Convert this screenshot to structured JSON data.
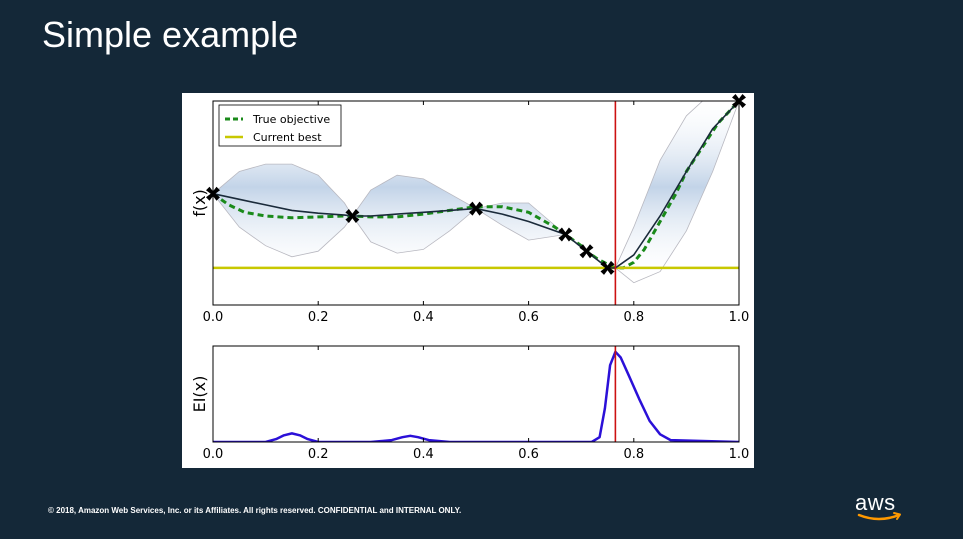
{
  "slide": {
    "title": "Simple example",
    "footer": "© 2018, Amazon Web Services, Inc. or its Affiliates. All rights reserved. CONFIDENTIAL and INTERNAL ONLY.",
    "logo_text": "aws"
  },
  "colors": {
    "background": "#142838",
    "true_objective": "#1a8a1a",
    "current_best": "#c8c800",
    "posterior_mean": "#1a2a3a",
    "uncertainty_band": "#b8cce4",
    "ei_curve": "#2b10d8",
    "next_sample_line": "#cc1111",
    "aws_smile": "#ff9900"
  },
  "chart_data": [
    {
      "type": "line",
      "ylabel": "f(x)",
      "xlim": [
        0.0,
        1.0
      ],
      "ylim": [
        -0.1,
        1.0
      ],
      "x_ticks": [
        "0.0",
        "0.2",
        "0.4",
        "0.6",
        "0.8",
        "1.0"
      ],
      "legend": {
        "placement": "top-left",
        "entries": [
          "True objective",
          "Current best"
        ]
      },
      "series": [
        {
          "name": "True objective",
          "style": "dashed",
          "x": [
            0.0,
            0.03,
            0.06,
            0.1,
            0.15,
            0.2,
            0.25,
            0.265,
            0.3,
            0.35,
            0.4,
            0.45,
            0.5,
            0.55,
            0.6,
            0.65,
            0.67,
            0.7,
            0.71,
            0.73,
            0.75,
            0.765,
            0.78,
            0.8,
            0.82,
            0.85,
            0.88,
            0.9,
            0.93,
            0.96,
            1.0
          ],
          "y": [
            0.5,
            0.44,
            0.4,
            0.38,
            0.37,
            0.375,
            0.38,
            0.38,
            0.375,
            0.375,
            0.39,
            0.41,
            0.43,
            0.43,
            0.4,
            0.32,
            0.28,
            0.22,
            0.19,
            0.15,
            0.12,
            0.1,
            0.1,
            0.13,
            0.2,
            0.35,
            0.5,
            0.62,
            0.75,
            0.88,
            1.0
          ]
        },
        {
          "name": "Current best",
          "style": "solid",
          "x": [
            0.0,
            1.0
          ],
          "y": [
            0.1,
            0.1
          ]
        }
      ],
      "posterior": {
        "x": [
          0.0,
          0.05,
          0.1,
          0.15,
          0.2,
          0.25,
          0.265,
          0.3,
          0.35,
          0.4,
          0.45,
          0.5,
          0.55,
          0.6,
          0.67,
          0.71,
          0.75,
          0.765,
          0.8,
          0.85,
          0.9,
          0.95,
          1.0
        ],
        "mean": [
          0.5,
          0.47,
          0.44,
          0.41,
          0.395,
          0.385,
          0.38,
          0.38,
          0.39,
          0.4,
          0.41,
          0.42,
          0.39,
          0.35,
          0.28,
          0.19,
          0.1,
          0.1,
          0.17,
          0.38,
          0.62,
          0.85,
          1.0
        ],
        "upper": [
          0.5,
          0.62,
          0.66,
          0.66,
          0.6,
          0.45,
          0.38,
          0.52,
          0.6,
          0.58,
          0.5,
          0.42,
          0.45,
          0.45,
          0.28,
          0.19,
          0.1,
          0.1,
          0.32,
          0.68,
          0.92,
          1.05,
          1.0
        ],
        "lower": [
          0.5,
          0.32,
          0.22,
          0.16,
          0.19,
          0.32,
          0.38,
          0.24,
          0.18,
          0.2,
          0.3,
          0.42,
          0.33,
          0.25,
          0.28,
          0.19,
          0.1,
          0.1,
          0.02,
          0.08,
          0.3,
          0.62,
          1.0
        ]
      },
      "observations": {
        "x": [
          0.0,
          0.265,
          0.5,
          0.67,
          0.71,
          0.75,
          1.0
        ],
        "y": [
          0.5,
          0.38,
          0.42,
          0.28,
          0.19,
          0.1,
          1.0
        ]
      },
      "vline_x": 0.765
    },
    {
      "type": "line",
      "ylabel": "EI(x)",
      "xlim": [
        0.0,
        1.0
      ],
      "ylim": [
        0.0,
        1.0
      ],
      "x_ticks": [
        "0.0",
        "0.2",
        "0.4",
        "0.6",
        "0.8",
        "1.0"
      ],
      "series": [
        {
          "x": [
            0.0,
            0.1,
            0.12,
            0.135,
            0.15,
            0.165,
            0.18,
            0.2,
            0.3,
            0.34,
            0.36,
            0.375,
            0.39,
            0.41,
            0.45,
            0.72,
            0.735,
            0.745,
            0.755,
            0.765,
            0.775,
            0.79,
            0.81,
            0.83,
            0.85,
            0.87,
            1.0
          ],
          "y": [
            0.0,
            0.0,
            0.03,
            0.07,
            0.09,
            0.07,
            0.03,
            0.0,
            0.0,
            0.02,
            0.05,
            0.065,
            0.05,
            0.02,
            0.0,
            0.0,
            0.05,
            0.35,
            0.8,
            0.94,
            0.88,
            0.7,
            0.45,
            0.22,
            0.08,
            0.02,
            0.0
          ]
        }
      ],
      "vline_x": 0.765
    }
  ]
}
